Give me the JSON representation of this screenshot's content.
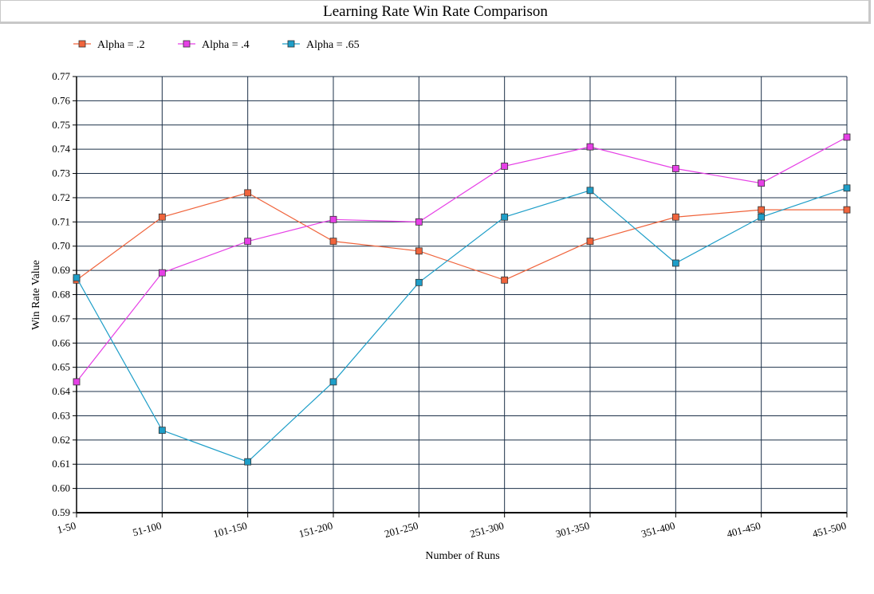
{
  "chart_data": {
    "type": "line",
    "title": "Learning Rate Win Rate Comparison",
    "xlabel": "Number of Runs",
    "ylabel": "Win Rate Value",
    "categories": [
      "1-50",
      "51-100",
      "101-150",
      "151-200",
      "201-250",
      "251-300",
      "301-350",
      "351-400",
      "401-450",
      "451-500"
    ],
    "ylim": [
      0.59,
      0.77
    ],
    "yticks": [
      "0.59",
      "0.60",
      "0.61",
      "0.62",
      "0.63",
      "0.64",
      "0.65",
      "0.66",
      "0.67",
      "0.68",
      "0.69",
      "0.70",
      "0.71",
      "0.72",
      "0.73",
      "0.74",
      "0.75",
      "0.76",
      "0.77"
    ],
    "grid": true,
    "legend_position": "top-left",
    "series": [
      {
        "name": "Alpha = .2",
        "color": "#f0643c",
        "values": [
          0.686,
          0.712,
          0.722,
          0.702,
          0.698,
          0.686,
          0.702,
          0.712,
          0.715,
          0.715
        ]
      },
      {
        "name": "Alpha = .4",
        "color": "#e640e6",
        "values": [
          0.644,
          0.689,
          0.702,
          0.711,
          0.71,
          0.733,
          0.741,
          0.732,
          0.726,
          0.745
        ]
      },
      {
        "name": "Alpha = .65",
        "color": "#1e9ec8",
        "values": [
          0.687,
          0.624,
          0.611,
          0.644,
          0.685,
          0.712,
          0.723,
          0.693,
          0.712,
          0.724
        ]
      }
    ]
  }
}
